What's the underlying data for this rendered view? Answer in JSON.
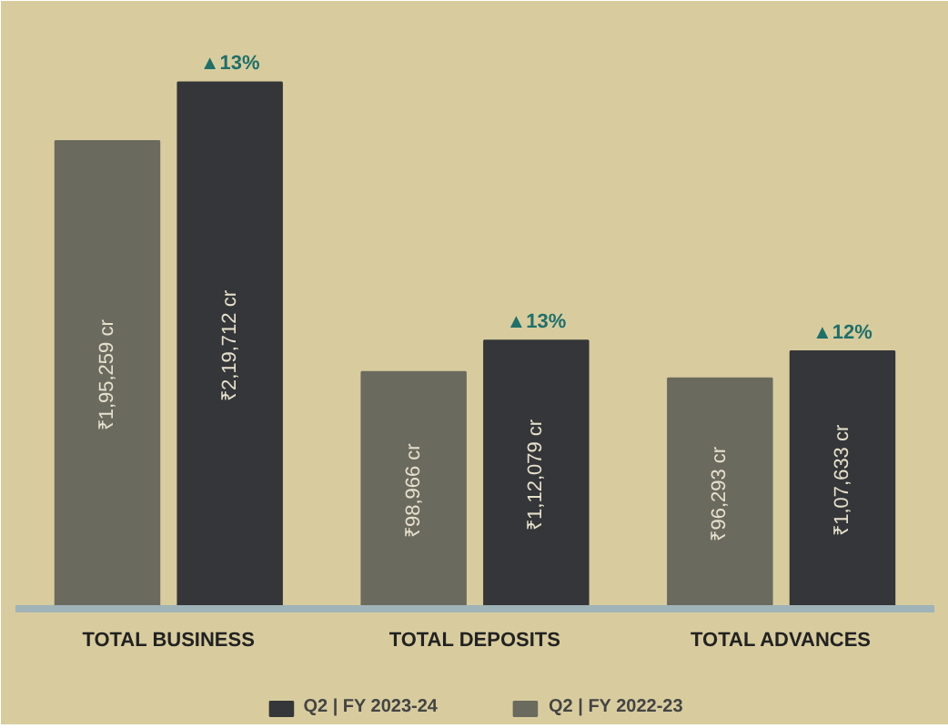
{
  "chart_data": {
    "type": "bar",
    "categories": [
      "TOTAL BUSINESS",
      "TOTAL DEPOSITS",
      "TOTAL ADVANCES"
    ],
    "series": [
      {
        "name": "Q2 | FY 2022-23",
        "color": "#6b6a5f",
        "values": [
          195259,
          98966,
          96293
        ],
        "value_labels": [
          "₹1,95,259 cr",
          "₹98,966 cr",
          "₹96,293 cr"
        ]
      },
      {
        "name": "Q2 | FY 2023-24",
        "color": "#353639",
        "values": [
          219712,
          112079,
          107633
        ],
        "value_labels": [
          "₹2,19,712 cr",
          "₹1,12,079 cr",
          "₹1,07,633 cr"
        ]
      }
    ],
    "annotations": [
      "▲13%",
      "▲13%",
      "▲12%"
    ],
    "legend": "bottom",
    "tick_labels": false
  }
}
